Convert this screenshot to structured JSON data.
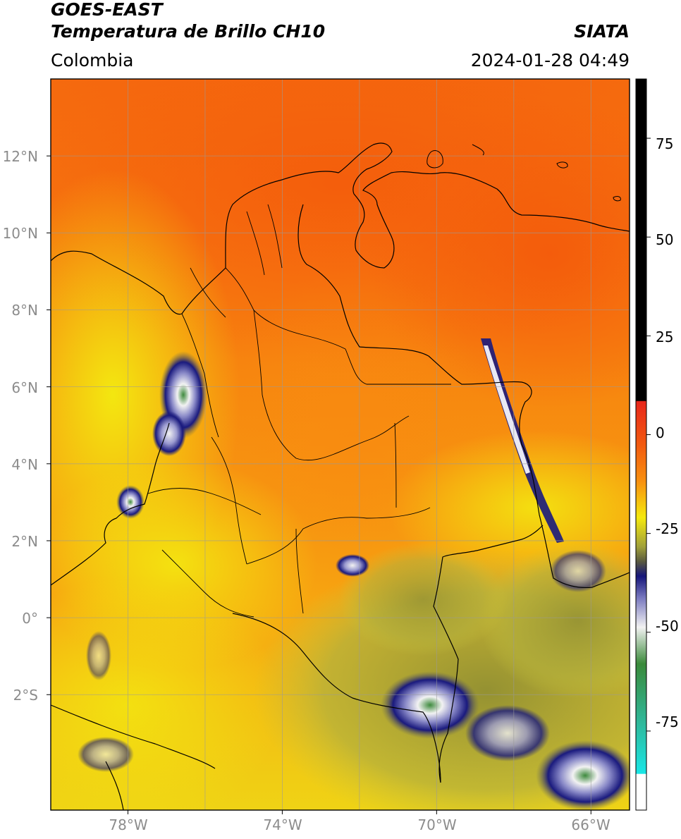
{
  "header": {
    "satellite": "GOES-EAST",
    "product": "Temperatura de Brillo CH10",
    "agency": "SIATA",
    "region": "Colombia",
    "datetime": "2024-01-28 04:49"
  },
  "map": {
    "lat_labels": [
      "12°N",
      "10°N",
      "8°N",
      "6°N",
      "4°N",
      "2°N",
      "0°",
      "2°S"
    ],
    "lon_labels": [
      "78°W",
      "74°W",
      "70°W",
      "66°W"
    ],
    "extent": {
      "lon_min": -80,
      "lon_max": -65,
      "lat_min": -5,
      "lat_max": 14
    }
  },
  "colorbar": {
    "ticks": [
      "75",
      "50",
      "25",
      "0",
      "-25",
      "-50",
      "-75"
    ],
    "range": [
      -95,
      90
    ],
    "colors": {
      "hot": "#000000",
      "red": "#e8261b",
      "orange": "#f77d0d",
      "yellow": "#f5e90e",
      "olive": "#8a8a2a",
      "navy": "#15157a",
      "white": "#f2f2f2",
      "green": "#3a8a3a",
      "teal": "#2fb89a",
      "cyan": "#19e6e6"
    }
  }
}
